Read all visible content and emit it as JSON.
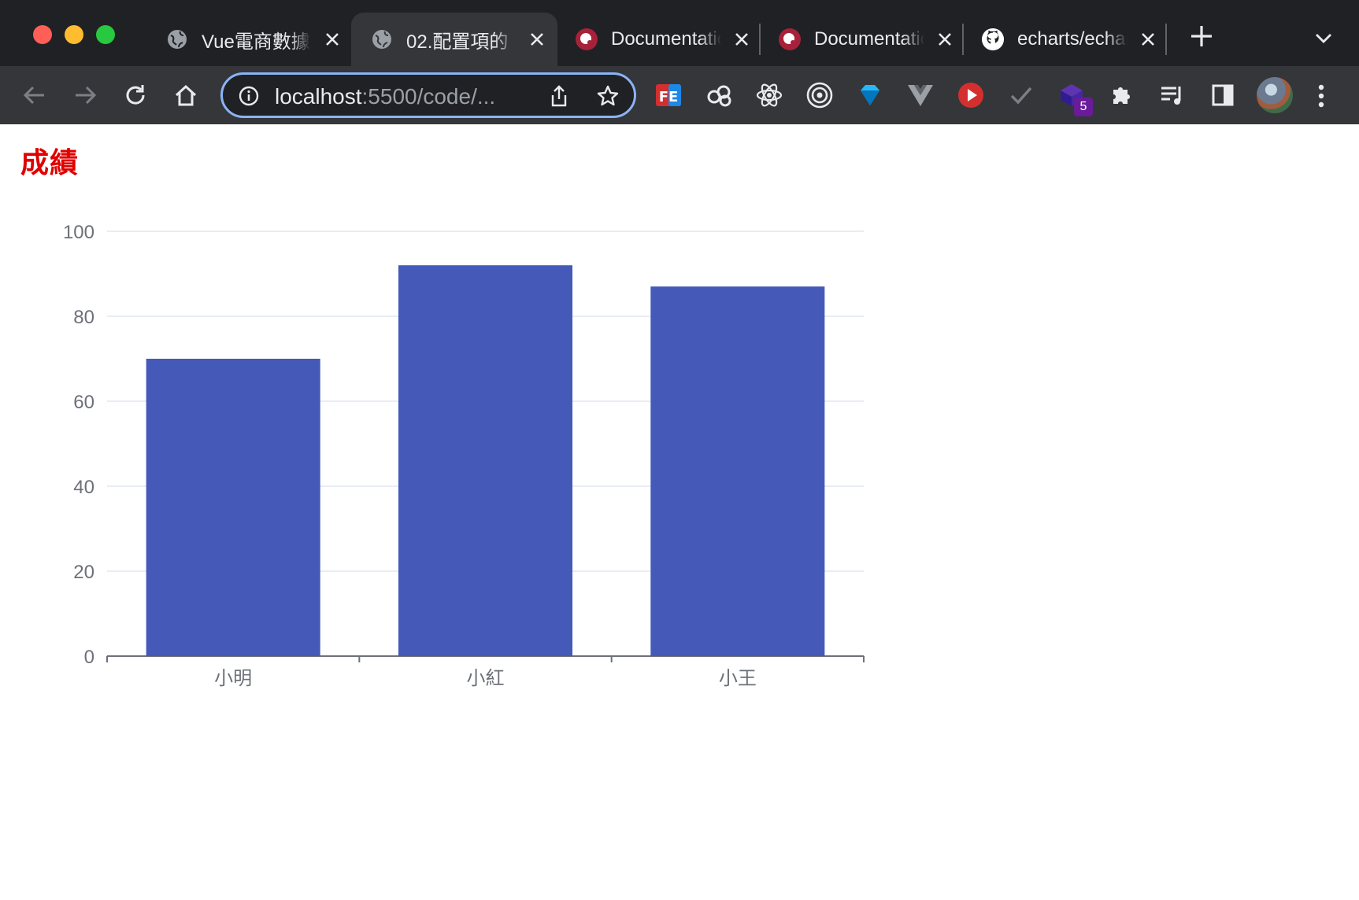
{
  "browser": {
    "tabs": [
      {
        "title": "Vue電商數據",
        "icon": "globe-icon",
        "active": false
      },
      {
        "title": "02.配置項的",
        "icon": "globe-icon",
        "active": true
      },
      {
        "title": "Documentation",
        "icon": "echarts-icon",
        "active": false
      },
      {
        "title": "Documentation",
        "icon": "echarts-icon",
        "active": false
      },
      {
        "title": "echarts/echarts",
        "icon": "github-icon",
        "active": false
      }
    ],
    "address": {
      "host": "localhost",
      "rest": ":5500/code/..."
    },
    "extension_badge": "5",
    "colors": {
      "frame": "#202124",
      "toolbar": "#35363a",
      "omnibox_focus": "#8ab4f8"
    }
  },
  "page": {
    "title": "成績",
    "title_color": "#e00000"
  },
  "chart_data": {
    "type": "bar",
    "title": "",
    "xlabel": "",
    "ylabel": "",
    "categories": [
      "小明",
      "小紅",
      "小王"
    ],
    "values": [
      70,
      92,
      87
    ],
    "ylim": [
      0,
      100
    ],
    "yticks": [
      "0",
      "20",
      "40",
      "60",
      "80",
      "100"
    ],
    "grid": true,
    "bar_color": "#4459b8"
  }
}
